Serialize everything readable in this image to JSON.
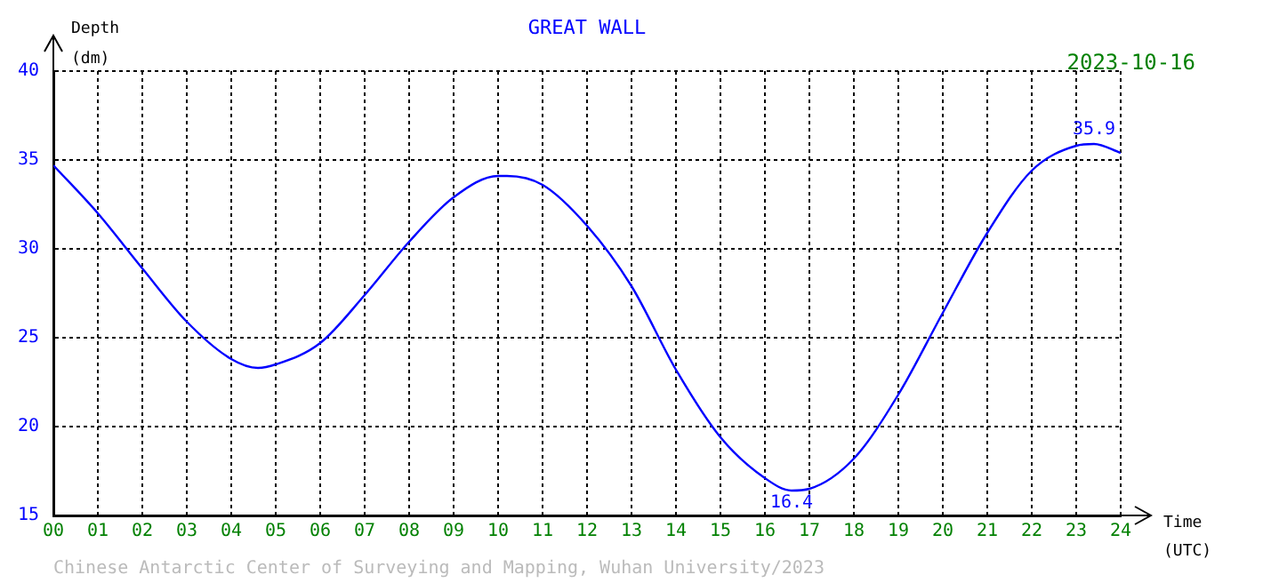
{
  "chart_data": {
    "type": "line",
    "title": "GREAT WALL",
    "ylabel": "Depth (dm)",
    "xlabel": "Time (UTC)",
    "x": [
      0,
      1,
      2,
      3,
      4,
      4.6,
      5,
      6,
      7,
      8,
      9,
      10,
      10.2,
      11,
      12,
      13,
      14,
      15,
      16,
      16.6,
      17,
      18,
      19,
      20,
      21,
      22,
      23,
      23.4,
      24
    ],
    "series": [
      {
        "color": "#0000ff",
        "values": [
          34.7,
          32.0,
          28.9,
          25.9,
          23.8,
          23.3,
          23.5,
          24.7,
          27.4,
          30.4,
          32.9,
          34.1,
          34.1,
          33.6,
          31.3,
          27.9,
          23.2,
          19.4,
          17.1,
          16.4,
          16.5,
          18.2,
          21.8,
          26.4,
          30.9,
          34.4,
          35.8,
          35.9,
          35.4
        ]
      }
    ],
    "xlim": [
      0,
      24
    ],
    "xticks": [
      {
        "value": 0,
        "label": "00"
      },
      {
        "value": 1,
        "label": "01"
      },
      {
        "value": 2,
        "label": "02"
      },
      {
        "value": 3,
        "label": "03"
      },
      {
        "value": 4,
        "label": "04"
      },
      {
        "value": 5,
        "label": "05"
      },
      {
        "value": 6,
        "label": "06"
      },
      {
        "value": 7,
        "label": "07"
      },
      {
        "value": 8,
        "label": "08"
      },
      {
        "value": 9,
        "label": "09"
      },
      10,
      11,
      12,
      13,
      14,
      15,
      16,
      17,
      18,
      19,
      20,
      21,
      22,
      23,
      24
    ],
    "ylim": [
      15,
      40
    ],
    "yticks": [
      15,
      20,
      25,
      30,
      35,
      40
    ],
    "grid": true,
    "legend": false,
    "marker": "none",
    "line_style": "solid",
    "annotations": [
      "2023-10-16",
      "Chinese Antarctic Center of Surveying and Mapping, Wuhan University/2023",
      {
        "text": "35.9",
        "x": 23.4,
        "y": 35.9
      },
      {
        "text": "16.4",
        "x": 16.6,
        "y": 16.4
      }
    ]
  }
}
